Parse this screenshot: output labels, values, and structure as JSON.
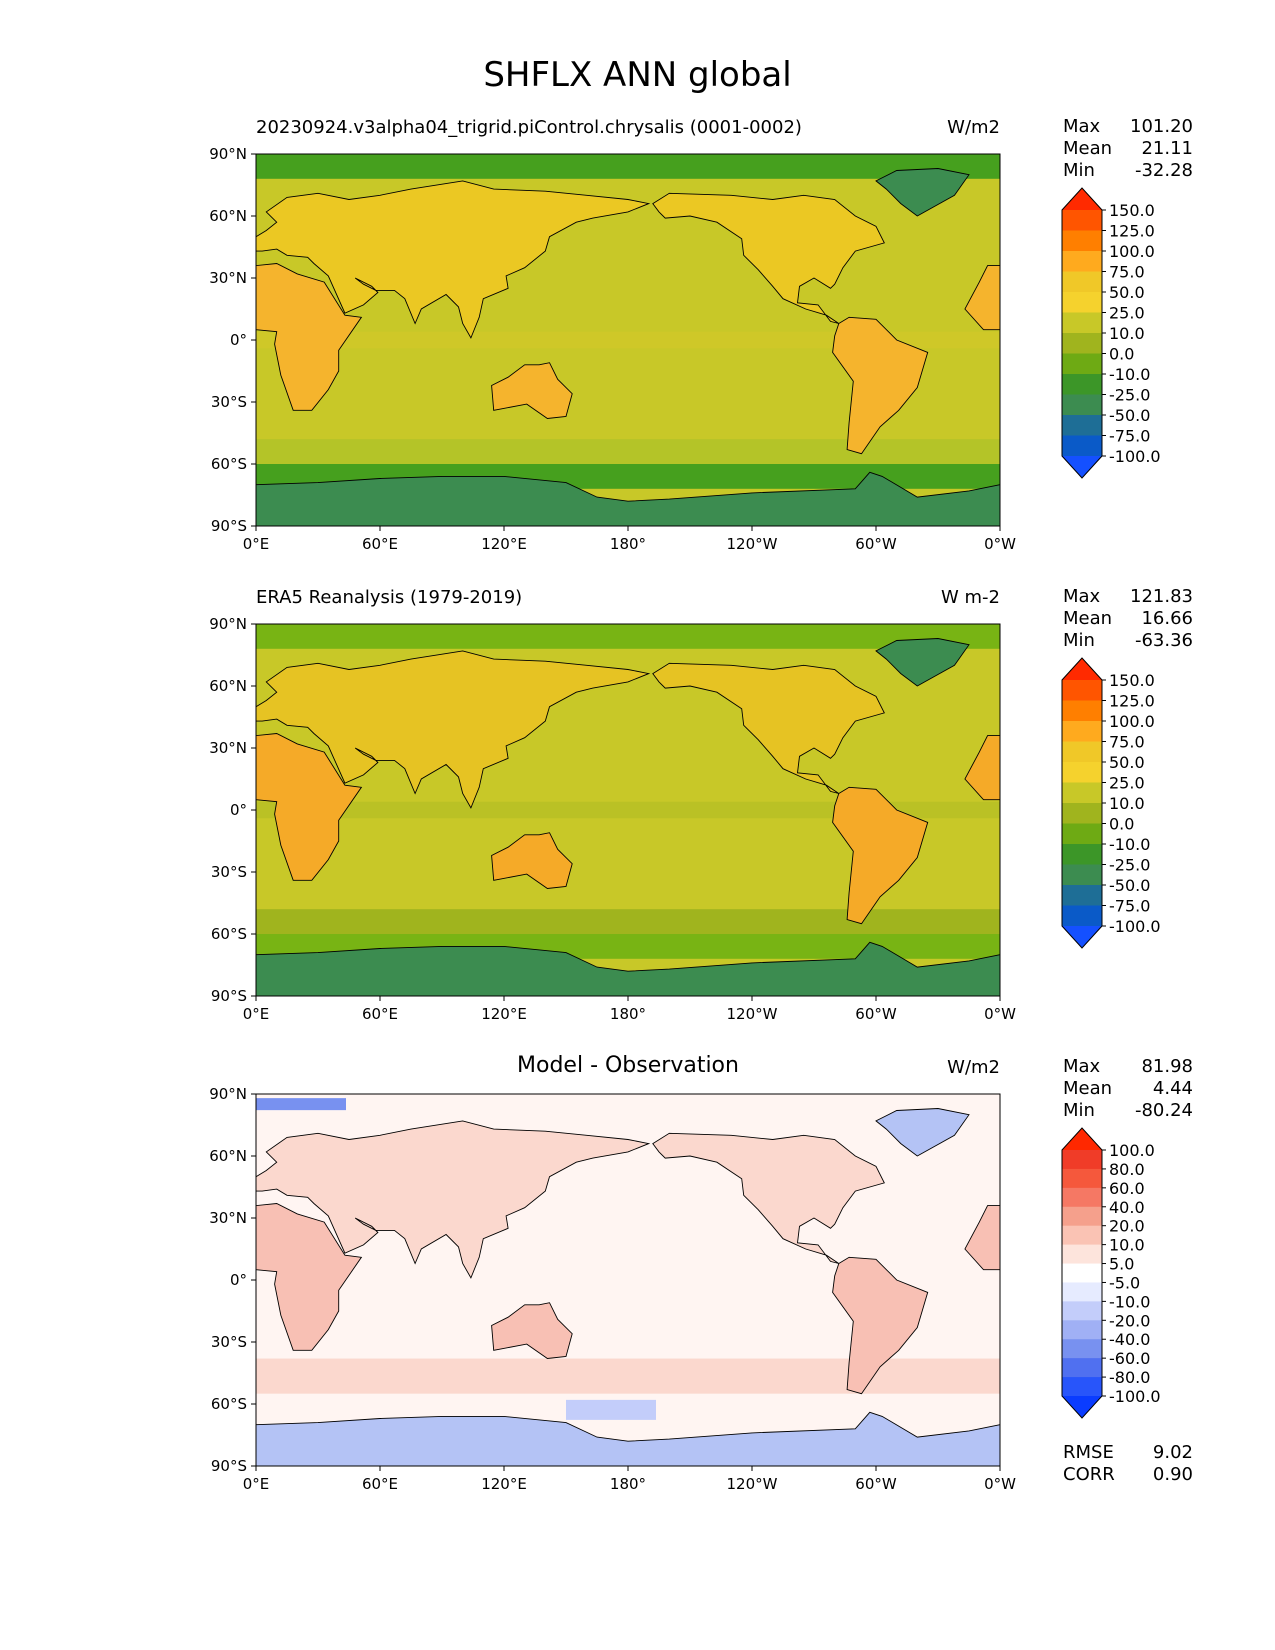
{
  "figure_title": "SHFLX ANN global",
  "lat_ticks": [
    "90°N",
    "60°N",
    "30°N",
    "0°",
    "30°S",
    "60°S",
    "90°S"
  ],
  "lon_ticks": [
    "0°E",
    "60°E",
    "120°E",
    "180°",
    "120°W",
    "60°W",
    "0°W"
  ],
  "panels": [
    {
      "title_left": "20230924.v3alpha04_trigrid.piControl.chrysalis (0001-0002)",
      "title_center": "",
      "units": "W/m2",
      "stats": [
        {
          "label": "Max",
          "value": "101.20"
        },
        {
          "label": "Mean",
          "value": "21.11"
        },
        {
          "label": "Min",
          "value": "-32.28"
        }
      ],
      "colorbar": {
        "levels": [
          "150.0",
          "125.0",
          "100.0",
          "75.0",
          "50.0",
          "25.0",
          "10.0",
          "0.0",
          "-10.0",
          "-25.0",
          "-50.0",
          "-75.0",
          "-100.0"
        ],
        "colors": [
          "#ff2a00",
          "#ff5500",
          "#ff7f00",
          "#ffaa1e",
          "#f0c828",
          "#f5d22d",
          "#c8c828",
          "#a0b41e",
          "#6eaa14",
          "#3c9628",
          "#3c8c50",
          "#1e6e96",
          "#0a5ac8",
          "#1450ff"
        ]
      },
      "map": {
        "ocean": "#c8c828",
        "land_warm": "#f5b42d",
        "land_mid": "#ebc823",
        "polar": "#46a01e",
        "ice": "#3c8c50"
      }
    },
    {
      "title_left": "ERA5 Reanalysis (1979-2019)",
      "title_center": "",
      "units": "W m-2",
      "stats": [
        {
          "label": "Max",
          "value": "121.83"
        },
        {
          "label": "Mean",
          "value": "16.66"
        },
        {
          "label": "Min",
          "value": "-63.36"
        }
      ],
      "colorbar": {
        "levels": [
          "150.0",
          "125.0",
          "100.0",
          "75.0",
          "50.0",
          "25.0",
          "10.0",
          "0.0",
          "-10.0",
          "-25.0",
          "-50.0",
          "-75.0",
          "-100.0"
        ],
        "colors": [
          "#ff2a00",
          "#ff5500",
          "#ff7f00",
          "#ffaa1e",
          "#f0c828",
          "#f5d22d",
          "#c8c828",
          "#a0b41e",
          "#6eaa14",
          "#3c9628",
          "#3c8c50",
          "#1e6e96",
          "#0a5ac8",
          "#1450ff"
        ]
      },
      "map": {
        "ocean": "#c8c828",
        "land_warm": "#f5aa28",
        "land_mid": "#e6c323",
        "polar": "#78b414",
        "ice": "#3c8c50"
      }
    },
    {
      "title_left": "",
      "title_center": "Model - Observation",
      "units": "W/m2",
      "stats": [
        {
          "label": "Max",
          "value": "81.98"
        },
        {
          "label": "Mean",
          "value": "4.44"
        },
        {
          "label": "Min",
          "value": "-80.24"
        }
      ],
      "colorbar": {
        "levels": [
          "100.0",
          "80.0",
          "60.0",
          "40.0",
          "20.0",
          "10.0",
          "5.0",
          "-5.0",
          "-10.0",
          "-20.0",
          "-40.0",
          "-60.0",
          "-80.0",
          "-100.0"
        ],
        "colors": [
          "#ff2800",
          "#f03c28",
          "#f5583c",
          "#f57864",
          "#f5a08c",
          "#fac3b4",
          "#fde4dc",
          "#ffffff",
          "#e6ebff",
          "#c3cdfa",
          "#a0b0f5",
          "#7891f0",
          "#5070f0",
          "#2855fa",
          "#0a3cff"
        ]
      },
      "map": {
        "ocean": "#fff5f2",
        "land_warm": "#f8c0b4",
        "land_mid": "#fbd8ce",
        "polar": "#f5b4a5",
        "ice": "#b4c3f5"
      },
      "extra_stats": [
        {
          "label": "RMSE",
          "value": "9.02"
        },
        {
          "label": "CORR",
          "value": "0.90"
        }
      ]
    }
  ]
}
